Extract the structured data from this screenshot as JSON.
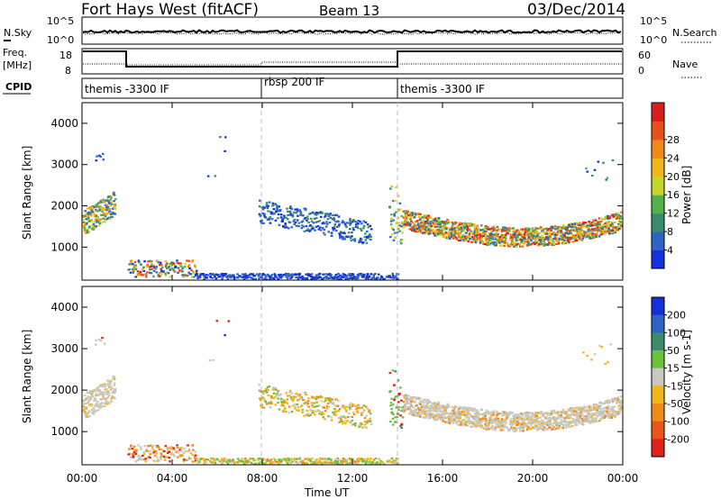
{
  "header": {
    "title": "Fort Hays West (fitACF)",
    "beam": "Beam 13",
    "date": "03/Dec/2014"
  },
  "sky_panel": {
    "left_label": "N.Sky",
    "right_label": "N.Search",
    "left_ticks": [
      "10^5",
      "10^0"
    ],
    "right_ticks": [
      "10^5",
      "10^0"
    ]
  },
  "freq_panel": {
    "left_label_1": "Freq.",
    "left_label_2": "[MHz]",
    "right_label": "Nave",
    "left_ticks": [
      "18",
      "8"
    ],
    "right_ticks": [
      "60",
      "0"
    ]
  },
  "cpid_panel": {
    "label": "CPID",
    "segments": [
      "themis -3300 IF",
      "rbsp 200 IF",
      "themis -3300 IF"
    ]
  },
  "chart_data": [
    {
      "type": "heatmap",
      "title": "",
      "ylabel": "Slant Range [km]",
      "xlabel": "",
      "x_ticks": [
        "00:00",
        "04:00",
        "08:00",
        "12:00",
        "16:00",
        "20:00",
        "00:00"
      ],
      "y_ticks": [
        1000,
        2000,
        3000,
        4000
      ],
      "ylim": [
        200,
        4500
      ],
      "colorbar": {
        "label": "Power [dB]",
        "ticks": [
          "4",
          "8",
          "12",
          "16",
          "20",
          "24",
          "28"
        ],
        "colors": [
          "#1530e0",
          "#2e64c8",
          "#3a8a6e",
          "#52b24a",
          "#c6d62a",
          "#f2b51a",
          "#f08a1a",
          "#e8521a",
          "#d8201a"
        ]
      }
    },
    {
      "type": "heatmap",
      "title": "",
      "ylabel": "Slant Range [km]",
      "xlabel": "Time UT",
      "x_ticks": [
        "00:00",
        "04:00",
        "08:00",
        "12:00",
        "16:00",
        "20:00",
        "00:00"
      ],
      "y_ticks": [
        1000,
        2000,
        3000,
        4000
      ],
      "ylim": [
        200,
        4500
      ],
      "colorbar": {
        "label": "Velocity [m s-1]",
        "ticks": [
          "200",
          "100",
          "50",
          "15",
          "-15",
          "-50",
          "-100",
          "-200"
        ],
        "colors": [
          "#1530d8",
          "#2e62c4",
          "#3d8b6a",
          "#6ac23c",
          "#c8c8c0",
          "#f2b51a",
          "#f08a1a",
          "#e8541a",
          "#e0201a"
        ]
      }
    }
  ]
}
